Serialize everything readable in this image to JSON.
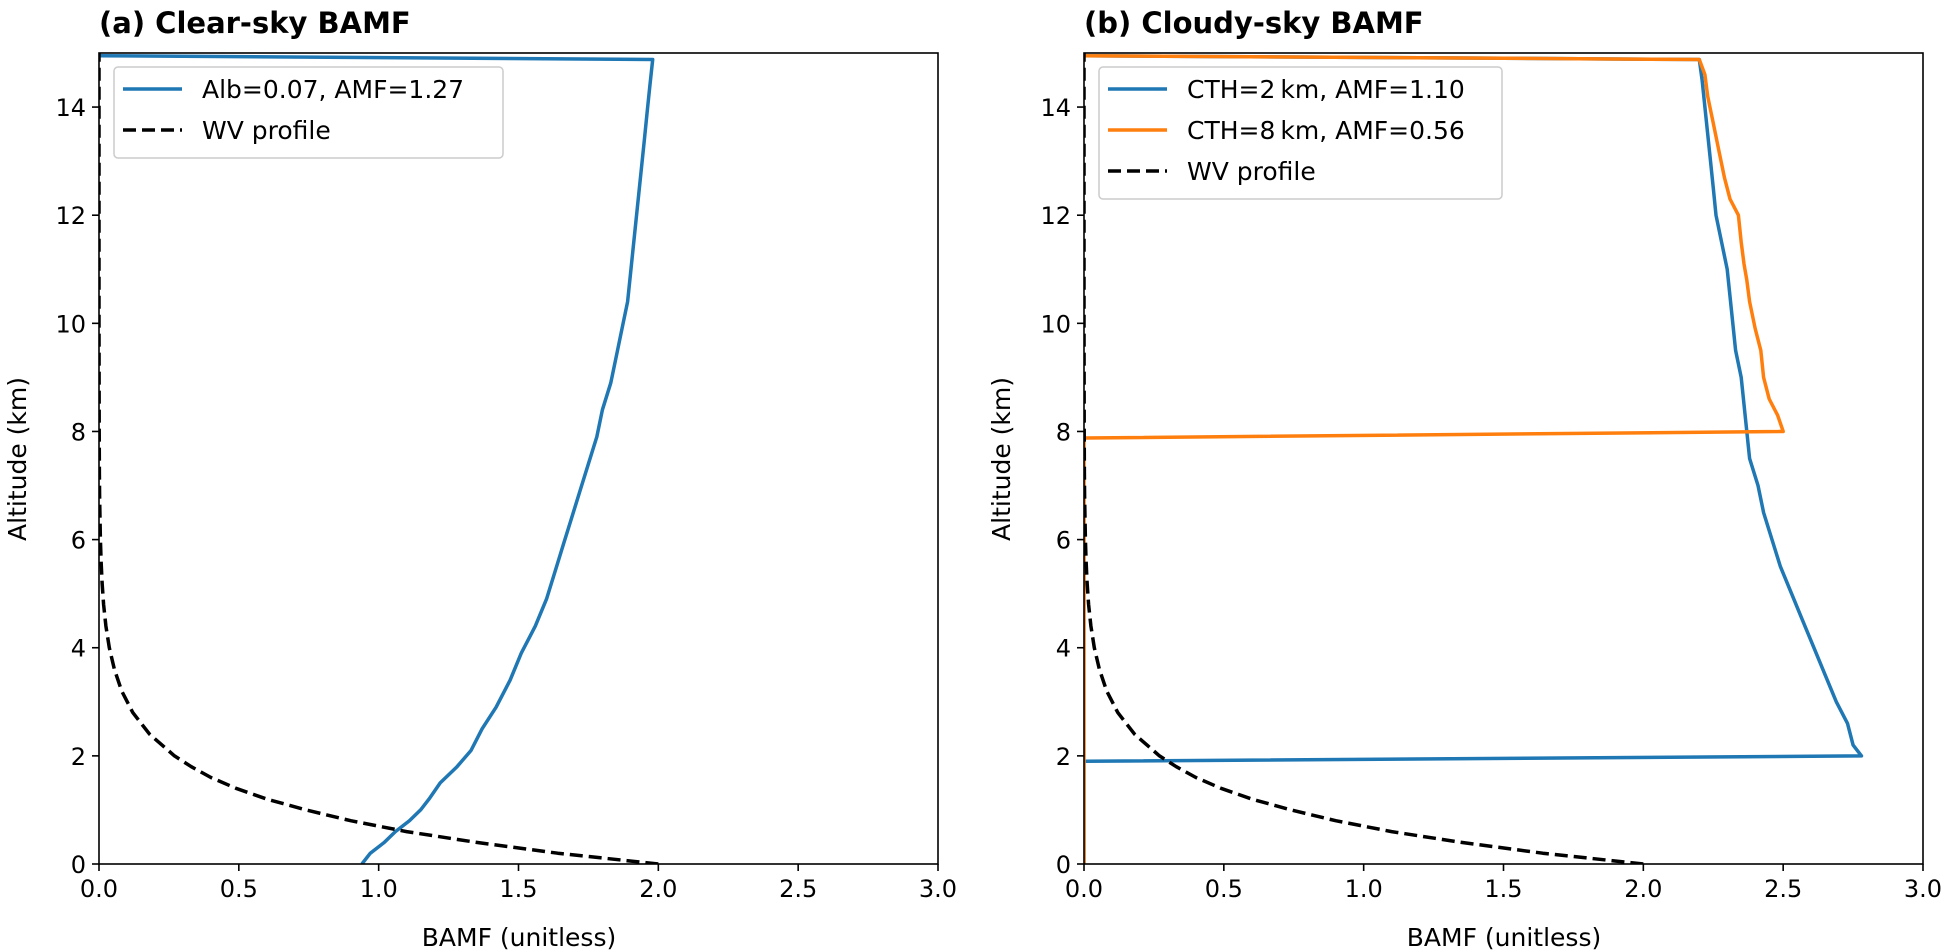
{
  "colors": {
    "blue": "#1f77b4",
    "orange": "#ff7f0e",
    "black": "#000000",
    "legend_border": "#cccccc"
  },
  "chart_data": [
    {
      "type": "line",
      "title": "(a) Clear-sky BAMF",
      "xlabel": "BAMF (unitless)",
      "ylabel": "Altitude (km)",
      "xlim": [
        0.0,
        3.0
      ],
      "ylim": [
        0,
        15
      ],
      "xticks": [
        0.0,
        0.5,
        1.0,
        1.5,
        2.0,
        2.5,
        3.0
      ],
      "xtick_labels": [
        "0.0",
        "0.5",
        "1.0",
        "1.5",
        "2.0",
        "2.5",
        "3.0"
      ],
      "yticks": [
        0,
        2,
        4,
        6,
        8,
        10,
        12,
        14
      ],
      "ytick_labels": [
        "0",
        "2",
        "4",
        "6",
        "8",
        "10",
        "12",
        "14"
      ],
      "grid": false,
      "legend_position": "top-left",
      "series": [
        {
          "name": "Alb=0.07, AMF=1.27",
          "color": "blue",
          "style": "solid",
          "points": [
            [
              0.94,
              0
            ],
            [
              0.97,
              0.2
            ],
            [
              1.02,
              0.4
            ],
            [
              1.06,
              0.6
            ],
            [
              1.11,
              0.8
            ],
            [
              1.15,
              1.0
            ],
            [
              1.18,
              1.2
            ],
            [
              1.22,
              1.5
            ],
            [
              1.28,
              1.8
            ],
            [
              1.33,
              2.1
            ],
            [
              1.37,
              2.5
            ],
            [
              1.42,
              2.9
            ],
            [
              1.47,
              3.4
            ],
            [
              1.51,
              3.9
            ],
            [
              1.56,
              4.4
            ],
            [
              1.6,
              4.9
            ],
            [
              1.63,
              5.4
            ],
            [
              1.66,
              5.9
            ],
            [
              1.69,
              6.4
            ],
            [
              1.72,
              6.9
            ],
            [
              1.75,
              7.4
            ],
            [
              1.78,
              7.9
            ],
            [
              1.8,
              8.4
            ],
            [
              1.83,
              8.9
            ],
            [
              1.85,
              9.4
            ],
            [
              1.87,
              9.9
            ],
            [
              1.89,
              10.4
            ],
            [
              1.9,
              10.9
            ],
            [
              1.91,
              11.4
            ],
            [
              1.92,
              11.9
            ],
            [
              1.93,
              12.4
            ],
            [
              1.94,
              12.9
            ],
            [
              1.95,
              13.4
            ],
            [
              1.96,
              13.9
            ],
            [
              1.97,
              14.4
            ],
            [
              1.98,
              14.88
            ],
            [
              0.0,
              14.95
            ]
          ]
        },
        {
          "name": "WV profile",
          "color": "black",
          "style": "dashed",
          "points": [
            [
              2.0,
              0
            ],
            [
              1.64,
              0.2
            ],
            [
              1.35,
              0.4
            ],
            [
              1.1,
              0.6
            ],
            [
              0.9,
              0.8
            ],
            [
              0.74,
              1.0
            ],
            [
              0.6,
              1.2
            ],
            [
              0.49,
              1.4
            ],
            [
              0.4,
              1.6
            ],
            [
              0.33,
              1.8
            ],
            [
              0.27,
              2.0
            ],
            [
              0.181,
              2.4
            ],
            [
              0.121,
              2.8
            ],
            [
              0.081,
              3.2
            ],
            [
              0.055,
              3.6
            ],
            [
              0.037,
              4.0
            ],
            [
              0.0248,
              4.4
            ],
            [
              0.0166,
              4.8
            ],
            [
              0.0111,
              5.2
            ],
            [
              0.0075,
              5.6
            ],
            [
              0.005,
              6.0
            ],
            [
              0.0034,
              6.4
            ],
            [
              0.0023,
              6.8
            ],
            [
              0.0015,
              7.2
            ],
            [
              0.001,
              7.6
            ],
            [
              0.0007,
              8.0
            ],
            [
              0.0003,
              9.0
            ],
            [
              0.0001,
              10.0
            ],
            [
              0.0,
              12.0
            ],
            [
              0.0,
              15.0
            ]
          ]
        }
      ]
    },
    {
      "type": "line",
      "title": "(b) Cloudy-sky BAMF",
      "xlabel": "BAMF (unitless)",
      "ylabel": "Altitude (km)",
      "xlim": [
        0.0,
        3.0
      ],
      "ylim": [
        0,
        15
      ],
      "xticks": [
        0.0,
        0.5,
        1.0,
        1.5,
        2.0,
        2.5,
        3.0
      ],
      "xtick_labels": [
        "0.0",
        "0.5",
        "1.0",
        "1.5",
        "2.0",
        "2.5",
        "3.0"
      ],
      "yticks": [
        0,
        2,
        4,
        6,
        8,
        10,
        12,
        14
      ],
      "ytick_labels": [
        "0",
        "2",
        "4",
        "6",
        "8",
        "10",
        "12",
        "14"
      ],
      "grid": false,
      "legend_position": "top-left",
      "series": [
        {
          "name": "CTH=2 km, AMF=1.10",
          "color": "blue",
          "style": "solid",
          "points": [
            [
              0.0,
              0
            ],
            [
              0.0,
              1.9
            ],
            [
              2.78,
              2.0
            ],
            [
              2.75,
              2.2
            ],
            [
              2.73,
              2.6
            ],
            [
              2.69,
              3.0
            ],
            [
              2.65,
              3.5
            ],
            [
              2.61,
              4.0
            ],
            [
              2.57,
              4.5
            ],
            [
              2.53,
              5.0
            ],
            [
              2.49,
              5.5
            ],
            [
              2.46,
              6.0
            ],
            [
              2.43,
              6.5
            ],
            [
              2.41,
              7.0
            ],
            [
              2.38,
              7.5
            ],
            [
              2.37,
              8.0
            ],
            [
              2.36,
              8.5
            ],
            [
              2.35,
              9.0
            ],
            [
              2.33,
              9.5
            ],
            [
              2.32,
              10.0
            ],
            [
              2.31,
              10.5
            ],
            [
              2.3,
              11.0
            ],
            [
              2.28,
              11.5
            ],
            [
              2.26,
              12.0
            ],
            [
              2.25,
              12.5
            ],
            [
              2.24,
              13.0
            ],
            [
              2.23,
              13.5
            ],
            [
              2.22,
              14.0
            ],
            [
              2.21,
              14.5
            ],
            [
              2.2,
              14.88
            ],
            [
              0.0,
              14.95
            ],
            [
              0.0,
              15.0
            ]
          ]
        },
        {
          "name": "CTH=8 km, AMF=0.56",
          "color": "orange",
          "style": "solid",
          "points": [
            [
              0.0,
              0
            ],
            [
              0.0,
              7.88
            ],
            [
              2.5,
              8.0
            ],
            [
              2.48,
              8.3
            ],
            [
              2.45,
              8.6
            ],
            [
              2.43,
              9.0
            ],
            [
              2.42,
              9.5
            ],
            [
              2.4,
              9.9
            ],
            [
              2.38,
              10.4
            ],
            [
              2.37,
              10.8
            ],
            [
              2.36,
              11.1
            ],
            [
              2.35,
              11.5
            ],
            [
              2.34,
              12.0
            ],
            [
              2.31,
              12.3
            ],
            [
              2.29,
              12.7
            ],
            [
              2.27,
              13.2
            ],
            [
              2.25,
              13.7
            ],
            [
              2.23,
              14.2
            ],
            [
              2.22,
              14.6
            ],
            [
              2.2,
              14.88
            ],
            [
              0.0,
              14.95
            ],
            [
              0.0,
              15.0
            ]
          ]
        },
        {
          "name": "WV profile",
          "color": "black",
          "style": "dashed",
          "points": [
            [
              2.0,
              0
            ],
            [
              1.64,
              0.2
            ],
            [
              1.35,
              0.4
            ],
            [
              1.1,
              0.6
            ],
            [
              0.9,
              0.8
            ],
            [
              0.74,
              1.0
            ],
            [
              0.6,
              1.2
            ],
            [
              0.49,
              1.4
            ],
            [
              0.4,
              1.6
            ],
            [
              0.33,
              1.8
            ],
            [
              0.27,
              2.0
            ],
            [
              0.181,
              2.4
            ],
            [
              0.121,
              2.8
            ],
            [
              0.081,
              3.2
            ],
            [
              0.055,
              3.6
            ],
            [
              0.037,
              4.0
            ],
            [
              0.0248,
              4.4
            ],
            [
              0.0166,
              4.8
            ],
            [
              0.0111,
              5.2
            ],
            [
              0.0075,
              5.6
            ],
            [
              0.005,
              6.0
            ],
            [
              0.0034,
              6.4
            ],
            [
              0.0023,
              6.8
            ],
            [
              0.0015,
              7.2
            ],
            [
              0.001,
              7.6
            ],
            [
              0.0007,
              8.0
            ],
            [
              0.0003,
              9.0
            ],
            [
              0.0001,
              10.0
            ],
            [
              0.0,
              12.0
            ],
            [
              0.0,
              15.0
            ]
          ]
        }
      ]
    }
  ]
}
